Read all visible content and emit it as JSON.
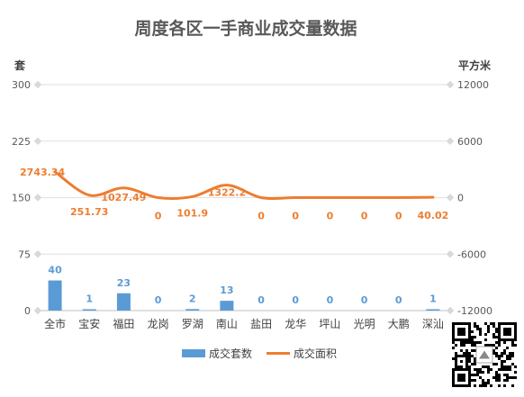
{
  "chart_data": {
    "type": "bar+line",
    "title": "周度各区一手商业成交量数据",
    "categories": [
      "全市",
      "宝安",
      "福田",
      "龙岗",
      "罗湖",
      "南山",
      "盐田",
      "龙华",
      "坪山",
      "光明",
      "大鹏",
      "深汕"
    ],
    "left_axis": {
      "unit": "套",
      "range": [
        0,
        300
      ],
      "ticks": [
        "0",
        "75",
        "150",
        "225",
        "300"
      ]
    },
    "right_axis": {
      "unit": "平方米",
      "range": [
        -12000,
        12000
      ],
      "ticks": [
        "-12000",
        "-6000",
        "0",
        "6000",
        "12000"
      ]
    },
    "series": [
      {
        "name": "成交套数",
        "type": "bar",
        "axis": "left",
        "color": "#5b9bd5",
        "values": [
          40,
          1,
          23,
          0,
          2,
          13,
          0,
          0,
          0,
          0,
          0,
          1
        ],
        "labels": [
          "40",
          "1",
          "23",
          "0",
          "2",
          "13",
          "0",
          "0",
          "0",
          "0",
          "0",
          "1"
        ]
      },
      {
        "name": "成交面积",
        "type": "line",
        "axis": "right",
        "smooth": true,
        "color": "#ed7d31",
        "values": [
          2743.34,
          251.73,
          1027.49,
          0,
          101.9,
          1322.2,
          0,
          0,
          0,
          0,
          0,
          40.02
        ],
        "labels": [
          "2743.34",
          "251.73",
          "1027.49",
          "0",
          "101.9",
          "1322.2",
          "0",
          "0",
          "0",
          "0",
          "0",
          "40.02"
        ]
      }
    ],
    "grid": true,
    "legend_position": "bottom"
  }
}
